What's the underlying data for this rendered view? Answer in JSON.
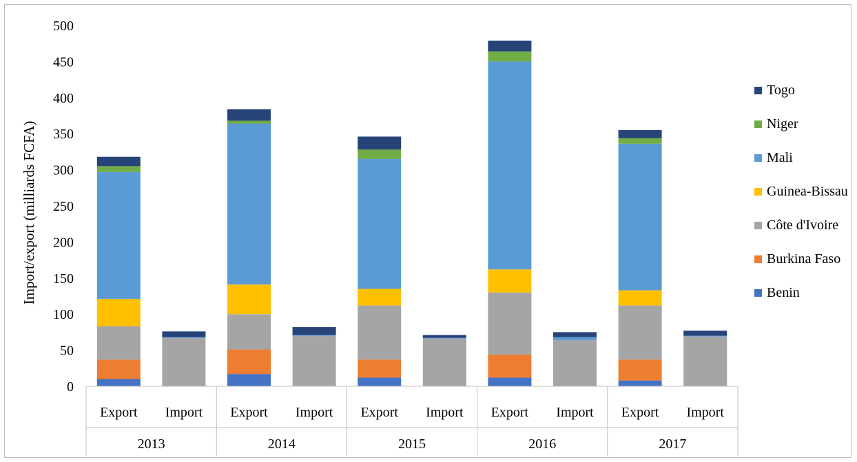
{
  "chart_data": {
    "type": "bar",
    "stacked": true,
    "title": "",
    "xlabel": "",
    "ylabel": "Import/export  (milliards  FCFA)",
    "ylim": [
      0,
      500
    ],
    "yticks": [
      0,
      50,
      100,
      150,
      200,
      250,
      300,
      350,
      400,
      450,
      500
    ],
    "grid": false,
    "legend_position": "right",
    "groups": [
      "2013",
      "2014",
      "2015",
      "2016",
      "2017"
    ],
    "categories": [
      "Export",
      "Import",
      "Export",
      "Import",
      "Export",
      "Import",
      "Export",
      "Import",
      "Export",
      "Import"
    ],
    "series": [
      {
        "name": "Benin",
        "color": "#4472c4",
        "values": [
          10,
          0,
          17,
          0,
          12,
          0,
          12,
          0,
          8,
          0
        ]
      },
      {
        "name": "Burkina Faso",
        "color": "#ed7d31",
        "values": [
          27,
          0,
          34,
          0,
          25,
          0,
          32,
          0,
          29,
          0
        ]
      },
      {
        "name": "Côte d'Ivoire",
        "color": "#a5a5a5",
        "values": [
          46,
          67,
          49,
          70,
          75,
          66,
          86,
          64,
          75,
          69
        ]
      },
      {
        "name": "Guinea-Bissau",
        "color": "#ffc000",
        "values": [
          38,
          0,
          41,
          0,
          23,
          0,
          32,
          0,
          21,
          0
        ]
      },
      {
        "name": "Mali",
        "color": "#5b9bd5",
        "values": [
          176,
          1,
          223,
          1,
          180,
          1,
          288,
          4,
          203,
          1
        ]
      },
      {
        "name": "Niger",
        "color": "#70ad47",
        "values": [
          8,
          0,
          4,
          0,
          13,
          0,
          14,
          0,
          8,
          0
        ]
      },
      {
        "name": "Togo",
        "color": "#264478",
        "values": [
          13,
          8,
          16,
          11,
          18,
          4,
          15,
          7,
          11,
          7
        ]
      }
    ]
  }
}
